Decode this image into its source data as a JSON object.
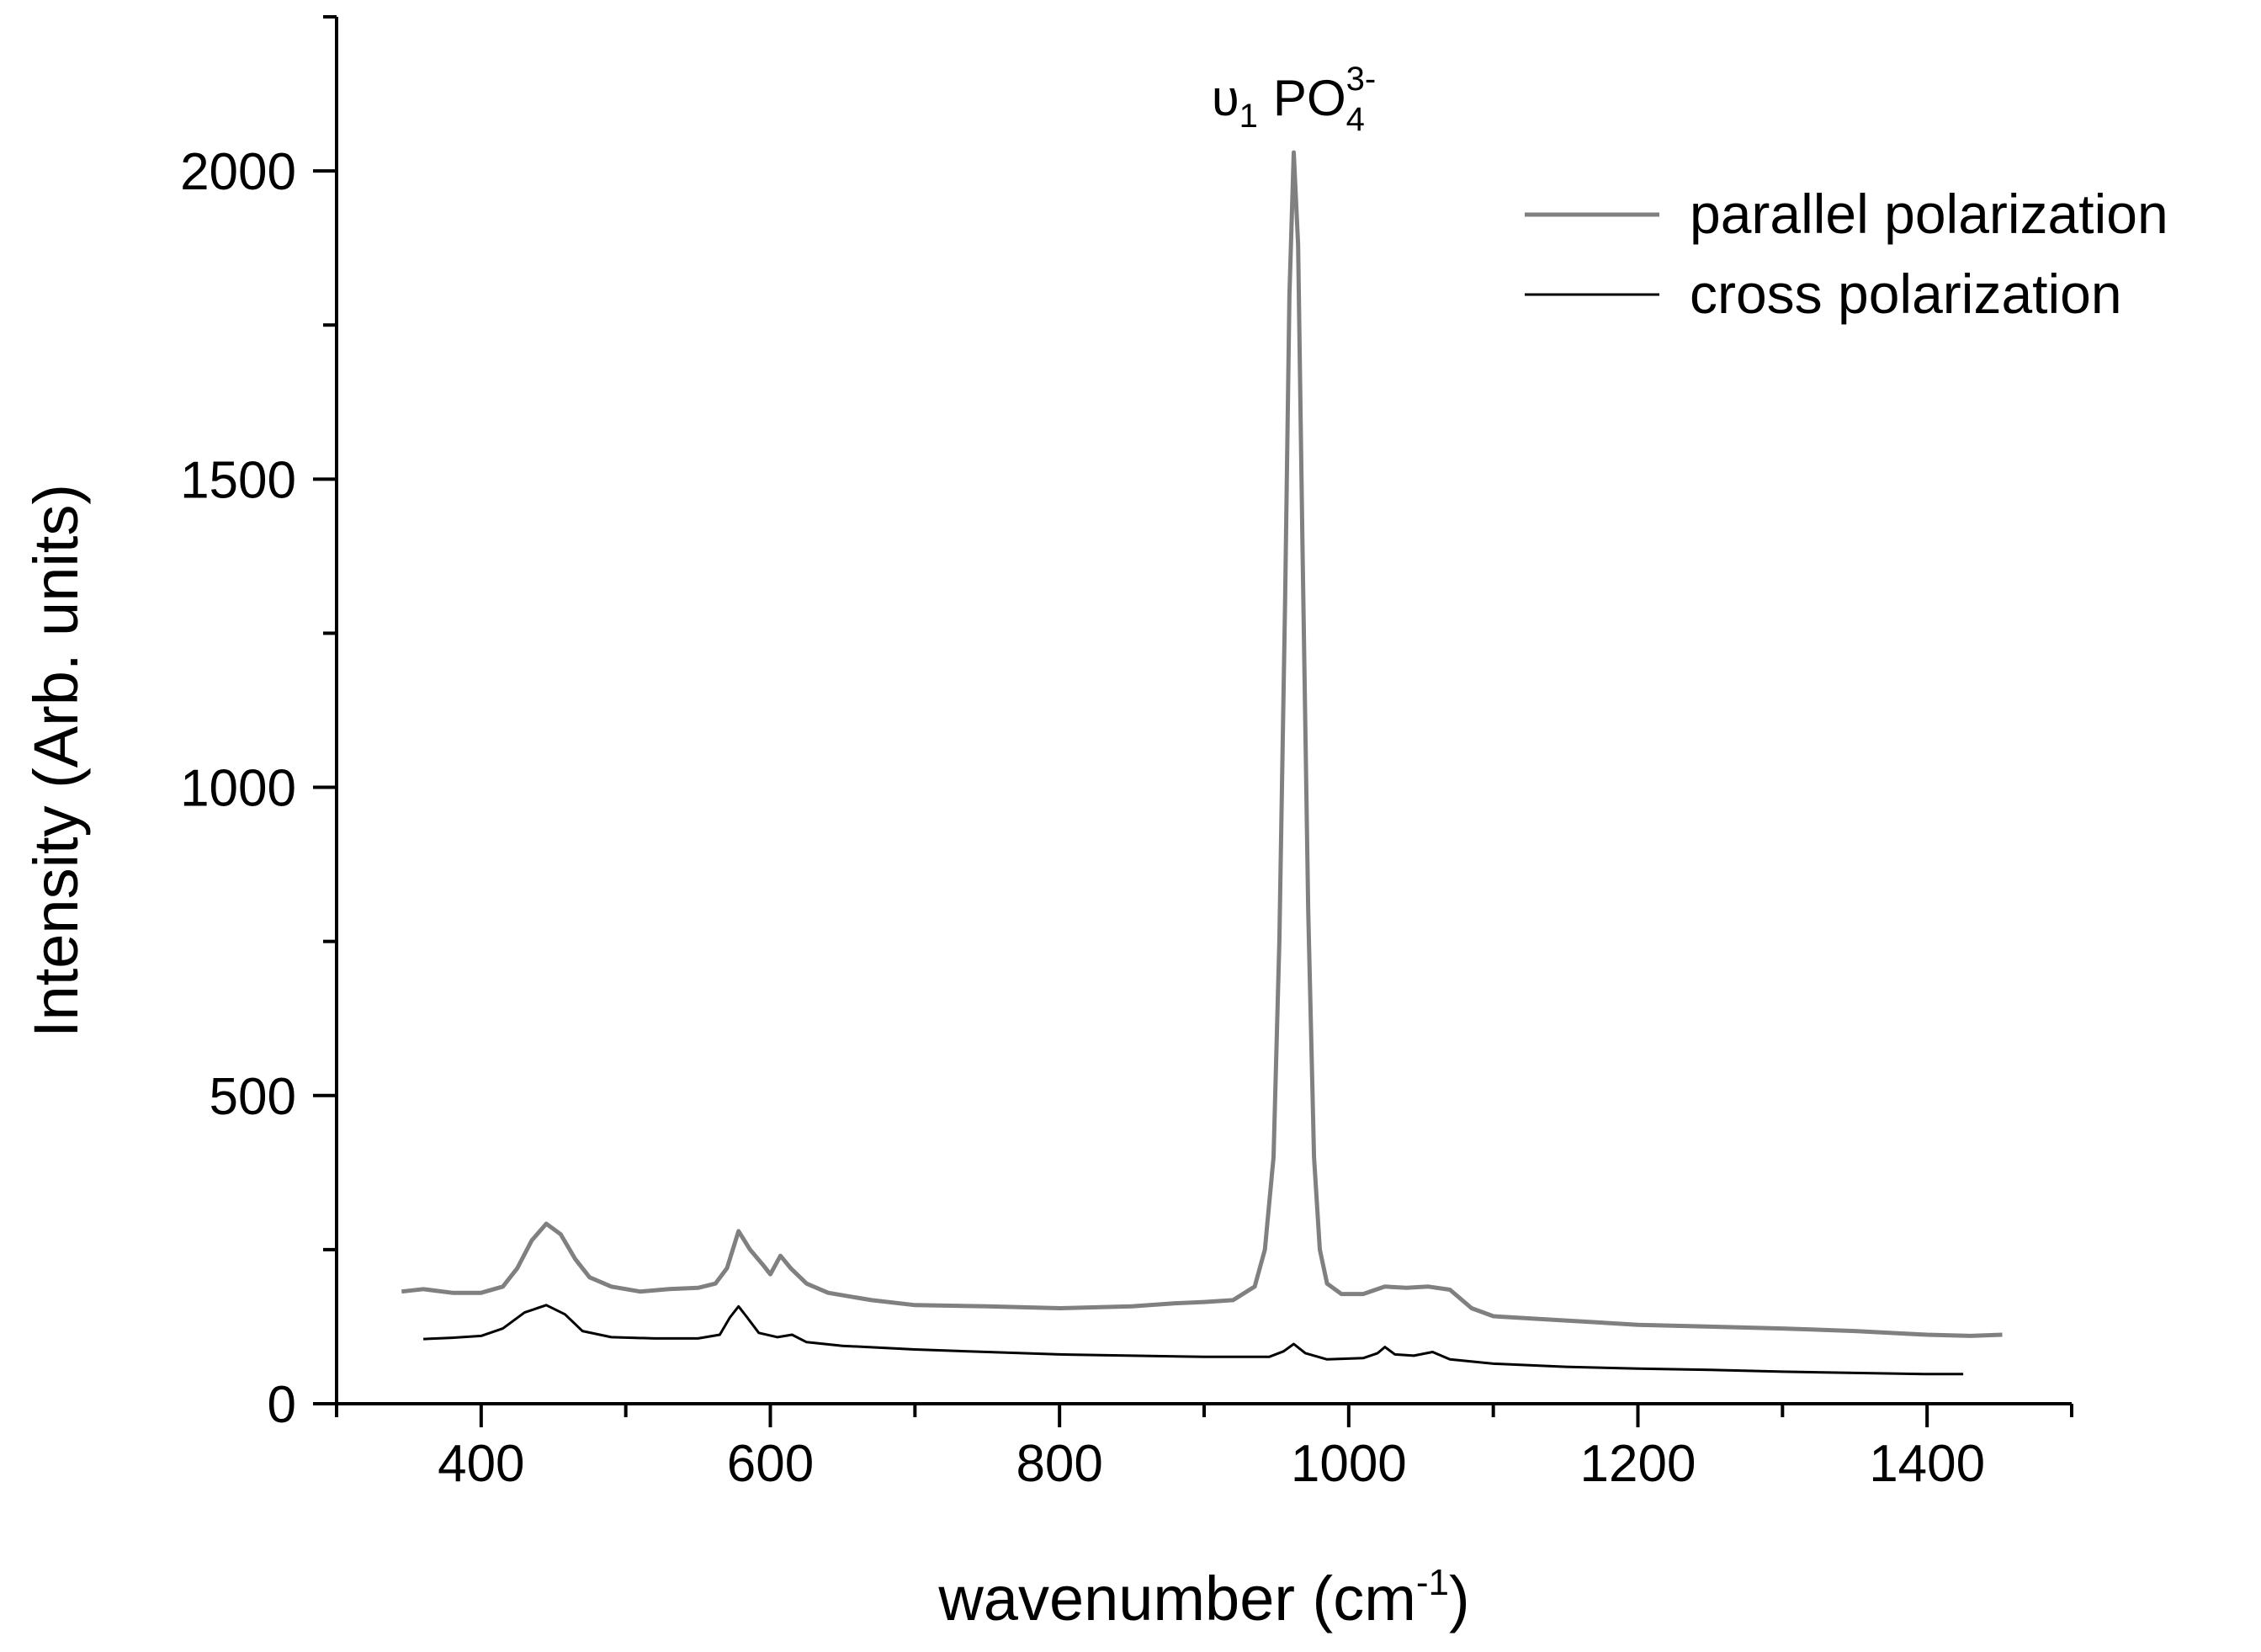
{
  "chart_data": {
    "type": "line",
    "xlabel": "wavenumber (cm",
    "xlabel_sup": "-1",
    "xlabel_suffix": ")",
    "ylabel": "Intensity (Arb. units)",
    "xlim": [
      300,
      1500
    ],
    "ylim": [
      0,
      2250
    ],
    "xticks": [
      400,
      600,
      800,
      1000,
      1200,
      1400
    ],
    "yticks": [
      0,
      500,
      1000,
      1500,
      2000
    ],
    "grid": false,
    "legend_position": "top-right",
    "annotation": {
      "text_symbol": "υ",
      "text_sub1": "1",
      "text_main": "PO",
      "text_sup": "3-",
      "text_sub2": "4",
      "x": 962,
      "y": 2090
    },
    "series": [
      {
        "name": "parallel polarization",
        "color": "#808080",
        "points": [
          [
            345,
            182
          ],
          [
            360,
            186
          ],
          [
            380,
            180
          ],
          [
            400,
            180
          ],
          [
            415,
            190
          ],
          [
            425,
            220
          ],
          [
            435,
            265
          ],
          [
            445,
            292
          ],
          [
            455,
            275
          ],
          [
            465,
            235
          ],
          [
            475,
            205
          ],
          [
            490,
            190
          ],
          [
            510,
            182
          ],
          [
            530,
            186
          ],
          [
            550,
            188
          ],
          [
            562,
            195
          ],
          [
            570,
            220
          ],
          [
            578,
            280
          ],
          [
            586,
            250
          ],
          [
            595,
            225
          ],
          [
            600,
            210
          ],
          [
            607,
            240
          ],
          [
            614,
            220
          ],
          [
            625,
            195
          ],
          [
            640,
            180
          ],
          [
            670,
            168
          ],
          [
            700,
            160
          ],
          [
            750,
            158
          ],
          [
            800,
            155
          ],
          [
            850,
            158
          ],
          [
            880,
            163
          ],
          [
            900,
            165
          ],
          [
            920,
            168
          ],
          [
            935,
            190
          ],
          [
            942,
            250
          ],
          [
            948,
            400
          ],
          [
            952,
            750
          ],
          [
            956,
            1300
          ],
          [
            959,
            1800
          ],
          [
            962,
            2030
          ],
          [
            965,
            1880
          ],
          [
            968,
            1400
          ],
          [
            972,
            800
          ],
          [
            976,
            400
          ],
          [
            980,
            250
          ],
          [
            985,
            195
          ],
          [
            995,
            178
          ],
          [
            1010,
            178
          ],
          [
            1025,
            190
          ],
          [
            1040,
            188
          ],
          [
            1055,
            190
          ],
          [
            1070,
            185
          ],
          [
            1085,
            155
          ],
          [
            1100,
            142
          ],
          [
            1150,
            135
          ],
          [
            1200,
            128
          ],
          [
            1250,
            125
          ],
          [
            1300,
            122
          ],
          [
            1350,
            118
          ],
          [
            1400,
            112
          ],
          [
            1430,
            110
          ],
          [
            1452,
            112
          ]
        ]
      },
      {
        "name": "cross polarization",
        "color": "#000000",
        "points": [
          [
            360,
            105
          ],
          [
            380,
            107
          ],
          [
            400,
            110
          ],
          [
            415,
            122
          ],
          [
            430,
            148
          ],
          [
            445,
            160
          ],
          [
            458,
            145
          ],
          [
            470,
            118
          ],
          [
            490,
            108
          ],
          [
            520,
            106
          ],
          [
            550,
            106
          ],
          [
            565,
            112
          ],
          [
            572,
            140
          ],
          [
            578,
            158
          ],
          [
            584,
            140
          ],
          [
            592,
            115
          ],
          [
            605,
            108
          ],
          [
            615,
            112
          ],
          [
            625,
            100
          ],
          [
            650,
            94
          ],
          [
            700,
            88
          ],
          [
            750,
            84
          ],
          [
            800,
            80
          ],
          [
            850,
            78
          ],
          [
            900,
            76
          ],
          [
            945,
            76
          ],
          [
            955,
            85
          ],
          [
            962,
            97
          ],
          [
            970,
            82
          ],
          [
            985,
            72
          ],
          [
            1010,
            74
          ],
          [
            1020,
            82
          ],
          [
            1025,
            92
          ],
          [
            1032,
            80
          ],
          [
            1045,
            78
          ],
          [
            1058,
            84
          ],
          [
            1070,
            72
          ],
          [
            1100,
            65
          ],
          [
            1150,
            60
          ],
          [
            1200,
            57
          ],
          [
            1250,
            55
          ],
          [
            1300,
            52
          ],
          [
            1350,
            50
          ],
          [
            1400,
            48
          ],
          [
            1425,
            48
          ]
        ]
      }
    ]
  }
}
